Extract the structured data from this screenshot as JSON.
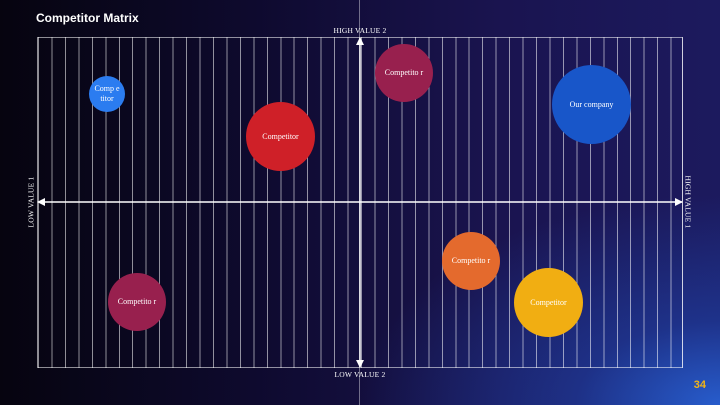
{
  "slide": {
    "title": "Competitor Matrix",
    "page_number": "34"
  },
  "axes": {
    "top_label": "HIGH VALUE 2",
    "bottom_label": "LOW VALUE 2",
    "left_label": "LOW VALUE 1",
    "right_label": "HIGH VALUE 1"
  },
  "bubbles": [
    {
      "label": "Comp etitor",
      "color": "#2b7cf0"
    },
    {
      "label": "Competitor",
      "color": "#cf2028"
    },
    {
      "label": "Competito r",
      "color": "#98204e"
    },
    {
      "label": "Our company",
      "color": "#1856c9"
    },
    {
      "label": "Competito r",
      "color": "#e46a2d"
    },
    {
      "label": "Competito r",
      "color": "#98204e"
    },
    {
      "label": "Competitor",
      "color": "#f1ae12"
    }
  ],
  "colors": {
    "title_text": "#ffffff",
    "page_number": "#f2b416",
    "grid_lines": "#ffffff"
  }
}
